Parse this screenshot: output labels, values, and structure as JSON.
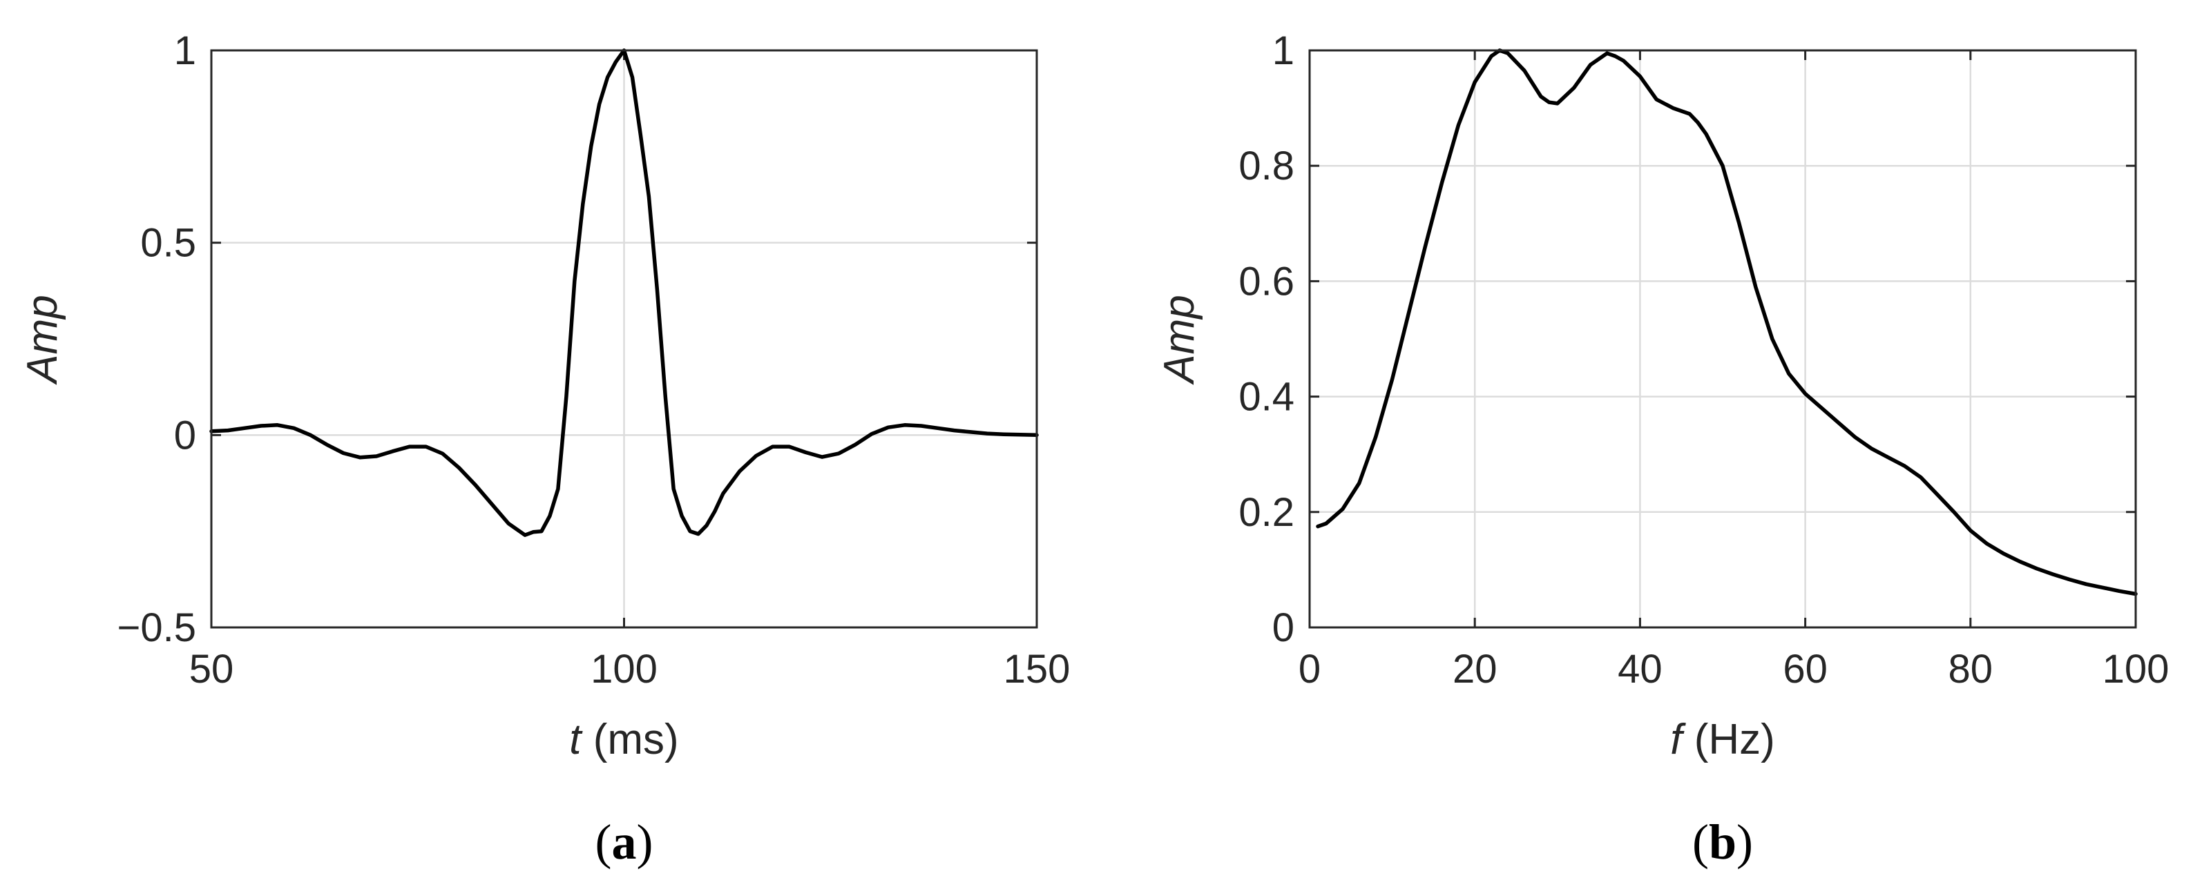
{
  "chart_data": [
    {
      "type": "line",
      "panel_label": {
        "open": "(",
        "letter": "a",
        "close": ")"
      },
      "xlabel": {
        "var": "t",
        "unit": " (ms)"
      },
      "ylabel": "Amp",
      "xlim": [
        50,
        150
      ],
      "ylim": [
        -0.5,
        1
      ],
      "xticks": [
        50,
        100,
        150
      ],
      "yticks": [
        -0.5,
        0,
        0.5,
        1
      ],
      "xtick_labels": [
        "50",
        "100",
        "150"
      ],
      "ytick_labels": [
        "−0.5",
        "0",
        "0.5",
        "1"
      ],
      "grid": true,
      "series": [
        {
          "x": [
            50,
            52,
            54,
            56,
            58,
            60,
            62,
            64,
            66,
            68,
            70,
            72,
            74,
            76,
            78,
            80,
            82,
            84,
            86,
            88,
            89,
            90,
            91,
            92,
            93,
            94,
            95,
            96,
            97,
            98,
            99,
            100,
            101,
            102,
            103,
            104,
            105,
            106,
            107,
            108,
            109,
            110,
            111,
            112,
            114,
            116,
            118,
            120,
            122,
            124,
            126,
            128,
            130,
            132,
            134,
            136,
            138,
            140,
            142,
            144,
            146,
            148,
            150
          ],
          "y": [
            0.01,
            0.012,
            0.018,
            0.024,
            0.026,
            0.018,
            0.0,
            -0.025,
            -0.047,
            -0.058,
            -0.055,
            -0.042,
            -0.03,
            -0.03,
            -0.048,
            -0.085,
            -0.13,
            -0.18,
            -0.23,
            -0.26,
            -0.252,
            -0.25,
            -0.21,
            -0.14,
            0.1,
            0.4,
            0.6,
            0.75,
            0.86,
            0.93,
            0.97,
            1.0,
            0.93,
            0.78,
            0.62,
            0.38,
            0.1,
            -0.14,
            -0.21,
            -0.25,
            -0.257,
            -0.235,
            -0.198,
            -0.152,
            -0.094,
            -0.054,
            -0.03,
            -0.03,
            -0.045,
            -0.057,
            -0.048,
            -0.025,
            0.003,
            0.02,
            0.026,
            0.024,
            0.018,
            0.012,
            0.008,
            0.004,
            0.002,
            0.001,
            0.0
          ]
        }
      ]
    },
    {
      "type": "line",
      "panel_label": {
        "open": "(",
        "letter": "b",
        "close": ")"
      },
      "xlabel": {
        "var": "f",
        "unit": " (Hz)"
      },
      "ylabel": "Amp",
      "xlim": [
        0,
        100
      ],
      "ylim": [
        0,
        1
      ],
      "xticks": [
        0,
        20,
        40,
        60,
        80,
        100
      ],
      "yticks": [
        0,
        0.2,
        0.4,
        0.6,
        0.8,
        1
      ],
      "xtick_labels": [
        "0",
        "20",
        "40",
        "60",
        "80",
        "100"
      ],
      "ytick_labels": [
        "0",
        "0.2",
        "0.4",
        "0.6",
        "0.8",
        "1"
      ],
      "grid": true,
      "series": [
        {
          "x": [
            1,
            2,
            4,
            6,
            8,
            10,
            12,
            14,
            16,
            18,
            20,
            22,
            23,
            24,
            26,
            28,
            29,
            30,
            32,
            34,
            36,
            37,
            38,
            40,
            42,
            44,
            46,
            47,
            48,
            50,
            52,
            54,
            56,
            58,
            60,
            62,
            64,
            66,
            68,
            70,
            72,
            74,
            76,
            78,
            80,
            82,
            84,
            86,
            88,
            90,
            92,
            94,
            96,
            98,
            100
          ],
          "y": [
            0.175,
            0.18,
            0.205,
            0.25,
            0.33,
            0.43,
            0.545,
            0.66,
            0.77,
            0.87,
            0.945,
            0.99,
            1.0,
            0.995,
            0.965,
            0.92,
            0.91,
            0.908,
            0.935,
            0.975,
            0.995,
            0.99,
            0.982,
            0.955,
            0.915,
            0.9,
            0.89,
            0.875,
            0.855,
            0.8,
            0.7,
            0.59,
            0.5,
            0.44,
            0.405,
            0.38,
            0.355,
            0.33,
            0.31,
            0.295,
            0.28,
            0.26,
            0.23,
            0.2,
            0.168,
            0.145,
            0.128,
            0.114,
            0.102,
            0.092,
            0.083,
            0.075,
            0.069,
            0.063,
            0.058
          ]
        }
      ]
    }
  ]
}
